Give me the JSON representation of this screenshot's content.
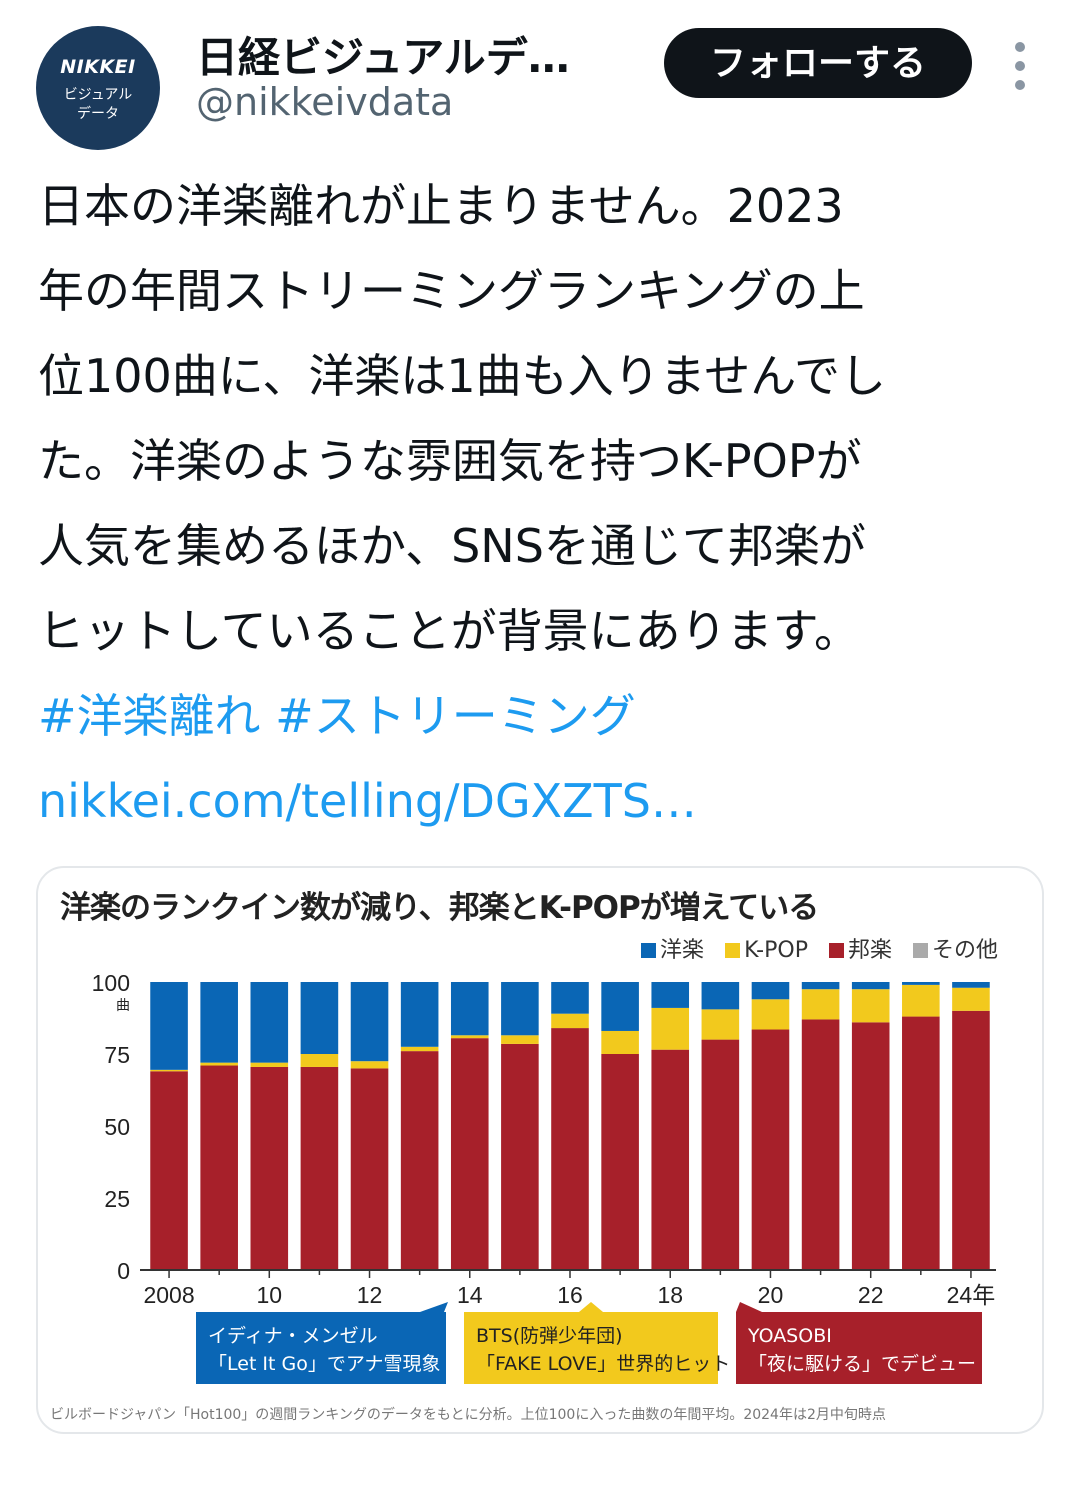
{
  "author": {
    "display_name": "日経ビジュアルデ…",
    "handle": "@nikkeivdata",
    "avatar_brand": "NIKKEI",
    "avatar_sub1": "ビジュアル",
    "avatar_sub2": "データ"
  },
  "follow_label": "フォローする",
  "more_icon": "vertical-dots-icon",
  "tweet": {
    "lines": [
      "日本の洋楽離れが止まりません。2023",
      "年の年間ストリーミングランキングの上",
      "位100曲に、洋楽は1曲も入りませんでし",
      "た。洋楽のような雰囲気を持つK-POPが",
      "人気を集めるほか、SNSを通じて邦楽が",
      "ヒットしていることが背景にあります。"
    ],
    "hashtag1": "#洋楽離れ",
    "hashtag2": "#ストリーミング",
    "url": "nikkei.com/telling/DGXZTS…"
  },
  "chart_data": {
    "type": "bar",
    "stacked": true,
    "title": "洋楽のランクイン数が減り、邦楽とK-POPが増えている",
    "ylabel": "曲",
    "ylim": [
      0,
      100
    ],
    "yticks": [
      0,
      25,
      50,
      75,
      100
    ],
    "categories": [
      "2008",
      "2009",
      "2010",
      "2011",
      "2012",
      "2013",
      "2014",
      "2015",
      "2016",
      "2017",
      "2018",
      "2019",
      "2020",
      "2021",
      "2022",
      "2023",
      "2024"
    ],
    "xtick_labels": [
      "2008",
      "10",
      "12",
      "14",
      "16",
      "18",
      "20",
      "22",
      "24年"
    ],
    "legend_position": "top-right",
    "series": [
      {
        "name": "邦楽",
        "color": "#a7202a",
        "values": [
          69,
          71,
          70.5,
          70.5,
          70,
          76,
          80.5,
          78.5,
          84,
          75,
          76.5,
          80,
          83.5,
          87,
          86,
          88,
          90
        ]
      },
      {
        "name": "K-POP",
        "color": "#f2c91d",
        "values": [
          0.5,
          1,
          1.5,
          4.5,
          2.5,
          1.5,
          1,
          3,
          5,
          8,
          14.5,
          10.5,
          10.5,
          10.5,
          11.5,
          11,
          8
        ]
      },
      {
        "name": "その他",
        "color": "#aaaaaa",
        "values": [
          0,
          0,
          0,
          0,
          0,
          0,
          0,
          0,
          0,
          0,
          0,
          0,
          0,
          0,
          0,
          0,
          0
        ]
      },
      {
        "name": "洋楽",
        "color": "#0a66b5",
        "values": [
          30.5,
          28,
          28,
          25,
          27.5,
          22.5,
          18.5,
          18.5,
          11,
          17,
          9,
          9.5,
          6,
          2.5,
          2.5,
          1,
          2
        ]
      }
    ],
    "legend_labels": [
      "洋楽",
      "K-POP",
      "邦楽",
      "その他"
    ],
    "annotations": [
      {
        "line1": "イディナ・メンゼル",
        "line2": "「Let It Go」でアナ雪現象",
        "color": "#0a66b5",
        "text_color": "#ffffff"
      },
      {
        "line1": "BTS(防弾少年団)",
        "line2": "「FAKE LOVE」世界的ヒット",
        "color": "#f2c91d",
        "text_color": "#222222"
      },
      {
        "line1": "YOASOBI",
        "line2": "「夜に駆ける」でデビュー",
        "color": "#a7202a",
        "text_color": "#ffffff"
      }
    ],
    "source_note": "ビルボードジャパン「Hot100」の週間ランキングのデータをもとに分析。上位100に入った曲数の年間平均。2024年は2月中旬時点"
  }
}
